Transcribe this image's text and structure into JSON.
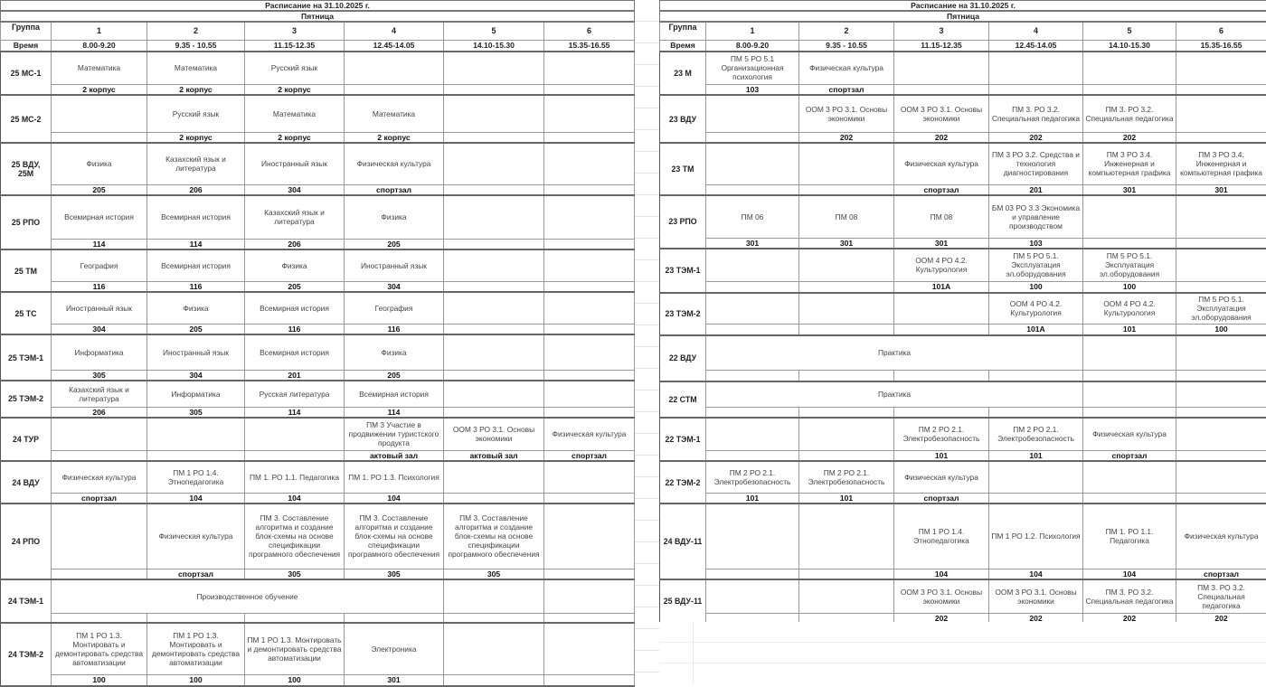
{
  "tables": [
    {
      "title": "Расписание на 31.10.2025 г.",
      "day": "Пятница",
      "group_label": "Группа",
      "time_label": "Время",
      "periods": [
        "1",
        "2",
        "3",
        "4",
        "5",
        "6"
      ],
      "times": [
        "8.00-9.20",
        "9.35 - 10.55",
        "11.15-12.35",
        "12.45-14.05",
        "14.10-15.30",
        "15.35-16.55"
      ],
      "groups": [
        {
          "name": "25 МС-1",
          "subjects": [
            "Математика",
            "Математика",
            "Русский язык",
            "",
            "",
            ""
          ],
          "rooms": [
            "2 корпус",
            "2 корпус",
            "2 корпус",
            "",
            "",
            ""
          ]
        },
        {
          "name": "25 МС-2",
          "subjects": [
            "",
            "Русский язык",
            "Математика",
            "Математика",
            "",
            ""
          ],
          "rooms": [
            "",
            "2 корпус",
            "2 корпус",
            "2 корпус",
            "",
            ""
          ]
        },
        {
          "name": "25 ВДУ, 25М",
          "subjects": [
            "Физика",
            "Казахский язык и литература",
            "Иностранный язык",
            "Физическая культура",
            "",
            ""
          ],
          "rooms": [
            "205",
            "206",
            "304",
            "спортзал",
            "",
            ""
          ]
        },
        {
          "name": "25 РПО",
          "subjects": [
            "Всемирная история",
            "Всемирная история",
            "Казахский язык и литература",
            "Физика",
            "",
            ""
          ],
          "rooms": [
            "114",
            "114",
            "206",
            "205",
            "",
            ""
          ]
        },
        {
          "name": "25 ТМ",
          "subjects": [
            "География",
            "Всемирная история",
            "Физика",
            "Иностранный язык",
            "",
            ""
          ],
          "rooms": [
            "116",
            "116",
            "205",
            "304",
            "",
            ""
          ]
        },
        {
          "name": "25 ТС",
          "subjects": [
            "Иностранный язык",
            "Физика",
            "Всемирная история",
            "География",
            "",
            ""
          ],
          "rooms": [
            "304",
            "205",
            "116",
            "116",
            "",
            ""
          ]
        },
        {
          "name": "25 ТЭМ-1",
          "subjects": [
            "Информатика",
            "Иностранный язык",
            "Всемирная история",
            "Физика",
            "",
            ""
          ],
          "rooms": [
            "305",
            "304",
            "201",
            "205",
            "",
            ""
          ]
        },
        {
          "name": "25 ТЭМ-2",
          "subjects": [
            "Казахский язык и литература",
            "Информатика",
            "Русская литература",
            "Всемирная история",
            "",
            ""
          ],
          "rooms": [
            "206",
            "305",
            "114",
            "114",
            "",
            ""
          ]
        },
        {
          "name": "24 ТУР",
          "subjects": [
            "",
            "",
            "",
            "ПМ 3 Участие в продвижении туристского продукта",
            "ООМ 3 РО 3.1. Основы экономики",
            "Физическая культура"
          ],
          "rooms": [
            "",
            "",
            "",
            "актовый зал",
            "актовый зал",
            "спортзал"
          ]
        },
        {
          "name": "24 ВДУ",
          "subjects": [
            "Физическая культура",
            "ПМ 1 РО 1.4. Этнопедагогика",
            "ПМ 1. РО 1.1. Педагогика",
            "ПМ 1. РО 1.3. Психология",
            "",
            ""
          ],
          "rooms": [
            "спортзал",
            "104",
            "104",
            "104",
            "",
            ""
          ]
        },
        {
          "name": "24 РПО",
          "subjects": [
            "",
            "Физическая культура",
            "ПМ 3. Составление алгоритма и создание блок-схемы на основе спецификации програмного обеспечения",
            "ПМ 3. Составление алгоритма и создание блок-схемы на основе спецификации програмного обеспечения",
            "ПМ 3. Составление алгоритма и создание блок-схемы на основе спецификации програмного обеспечения",
            ""
          ],
          "rooms": [
            "",
            "спортзал",
            "305",
            "305",
            "305",
            ""
          ]
        },
        {
          "name": "24 ТЭМ-1",
          "subjects": [
            "Производственное обучение",
            "",
            ""
          ],
          "subject_span": 4,
          "rooms": [
            "",
            "",
            "",
            "",
            "",
            ""
          ]
        },
        {
          "name": "24 ТЭМ-2",
          "subjects": [
            "ПМ 1 РО 1.3. Монтировать и демонтировать средства автоматизации",
            "ПМ 1 РО 1.3. Монтировать и демонтировать средства автоматизации",
            "ПМ 1 РО 1.3. Монтировать и демонтировать средства автоматизации",
            "Электроника",
            "",
            ""
          ],
          "rooms": [
            "100",
            "100",
            "100",
            "301",
            "",
            ""
          ]
        }
      ]
    },
    {
      "title": "Расписание на 31.10.2025 г.",
      "day": "Пятница",
      "group_label": "Группа",
      "time_label": "Время",
      "periods": [
        "1",
        "2",
        "3",
        "4",
        "5",
        "6"
      ],
      "times": [
        "8.00-9.20",
        "9.35 - 10.55",
        "11.15-12.35",
        "12.45-14.05",
        "14.10-15.30",
        "15.35-16.55"
      ],
      "groups": [
        {
          "name": "23 М",
          "subjects": [
            "ПМ 5 РО 5.1 Организационная психология",
            "Физическая культура",
            "",
            "",
            "",
            ""
          ],
          "rooms": [
            "103",
            "спортзал",
            "",
            "",
            "",
            ""
          ]
        },
        {
          "name": "23 ВДУ",
          "subjects": [
            "",
            "ООМ 3 РО 3.1. Основы экономики",
            "ООМ 3 РО 3.1. Основы экономики",
            "ПМ 3. РО 3.2. Специальная педагогика",
            "ПМ 3. РО 3.2. Специальная педагогика",
            ""
          ],
          "rooms": [
            "",
            "202",
            "202",
            "202",
            "202",
            ""
          ]
        },
        {
          "name": "23 ТМ",
          "subjects": [
            "",
            "",
            "Физическая культура",
            "ПМ 3 РО 3.2. Средства и технология диагностирования",
            "ПМ 3 РО 3.4. Инженерная и компьютерная графика",
            "ПМ 3 РО 3.4. Инженерная и компьютерная графика"
          ],
          "rooms": [
            "",
            "",
            "спортзал",
            "201",
            "301",
            "301"
          ]
        },
        {
          "name": "23 РПО",
          "subjects": [
            "ПМ 06",
            "ПМ 08",
            "ПМ 08",
            "БМ 03 РО 3.3 Экономика и управление производством",
            "",
            ""
          ],
          "rooms": [
            "301",
            "301",
            "301",
            "103",
            "",
            ""
          ]
        },
        {
          "name": "23 ТЭМ-1",
          "subjects": [
            "",
            "",
            "ООМ 4 РО 4.2. Культурология",
            "ПМ 5 РО 5.1. Эксплуатация эл.оборудования",
            "ПМ 5 РО 5.1. Эксплуатация эл.оборудования",
            ""
          ],
          "rooms": [
            "",
            "",
            "101А",
            "100",
            "100",
            ""
          ]
        },
        {
          "name": "23 ТЭМ-2",
          "subjects": [
            "",
            "",
            "",
            "ООМ 4 РО 4.2. Культурология",
            "ООМ 4 РО 4.2. Культурология",
            "ПМ 5 РО 5.1. Эксплуатация эл.оборудования"
          ],
          "rooms": [
            "",
            "",
            "",
            "101А",
            "101",
            "100"
          ]
        },
        {
          "name": "22 ВДУ",
          "subjects": [
            "Практика",
            "",
            ""
          ],
          "subject_span": 4,
          "rooms": [
            "",
            "",
            "",
            "",
            "",
            ""
          ]
        },
        {
          "name": "22 СТМ",
          "subjects": [
            "Практика",
            "",
            ""
          ],
          "subject_span": 4,
          "rooms": [
            "",
            "",
            "",
            "",
            "",
            ""
          ]
        },
        {
          "name": "22 ТЭМ-1",
          "subjects": [
            "",
            "",
            "ПМ 2 РО 2.1. Электробезопасность",
            "ПМ 2 РО 2.1. Электробезопасность",
            "Физическая культура",
            ""
          ],
          "rooms": [
            "",
            "",
            "101",
            "101",
            "спортзал",
            ""
          ]
        },
        {
          "name": "22 ТЭМ-2",
          "subjects": [
            "ПМ 2 РО 2.1. Электробезопасность",
            "ПМ 2 РО 2.1. Электробезопасность",
            "Физическая культура",
            "",
            "",
            ""
          ],
          "rooms": [
            "101",
            "101",
            "спортзал",
            "",
            "",
            ""
          ]
        },
        {
          "name": "24 ВДУ-11",
          "subjects": [
            "",
            "",
            "ПМ 1 РО 1.4. Этнопедагогика",
            "ПМ 1 РО 1.2. Психология",
            "ПМ 1. РО 1.1. Педагогика",
            "Физическая культура"
          ],
          "rooms": [
            "",
            "",
            "104",
            "104",
            "104",
            "спортзал"
          ]
        },
        {
          "name": "25 ВДУ-11",
          "subjects": [
            "",
            "",
            "ООМ 3 РО 3.1. Основы экономики",
            "ООМ 3 РО 3.1. Основы экономики",
            "ПМ 3. РО 3.2. Специальная педагогика",
            "ПМ 3. РО 3.2. Специальная педагогика"
          ],
          "rooms": [
            "",
            "",
            "202",
            "202",
            "202",
            "202"
          ]
        }
      ]
    }
  ]
}
